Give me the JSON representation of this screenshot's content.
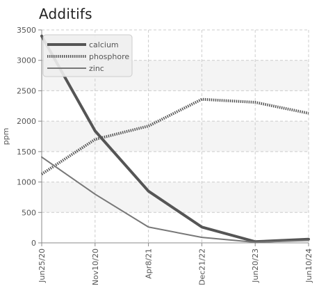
{
  "chart_data": {
    "type": "line",
    "title": "Additifs",
    "xlabel": "",
    "ylabel": "ppm",
    "categories": [
      "Jun25/20",
      "Nov10/20",
      "Apr8/21",
      "Dec21/22",
      "Jun20/23",
      "Jun10/24"
    ],
    "ylim": [
      0,
      3500
    ],
    "yticks": [
      0,
      500,
      1000,
      1500,
      2000,
      2500,
      3000,
      3500
    ],
    "grid": true,
    "legend": "top-left",
    "series": [
      {
        "name": "calcium",
        "values": [
          3400,
          1840,
          850,
          260,
          20,
          60
        ],
        "color": "#555555",
        "style": "solid",
        "width": 4
      },
      {
        "name": "phosphore",
        "values": [
          1130,
          1700,
          1920,
          2360,
          2310,
          2130
        ],
        "color": "#555555",
        "style": "dotted",
        "width": 4
      },
      {
        "name": "zinc",
        "values": [
          1410,
          800,
          260,
          90,
          10,
          40
        ],
        "color": "#777777",
        "style": "solid",
        "width": 2
      }
    ]
  }
}
